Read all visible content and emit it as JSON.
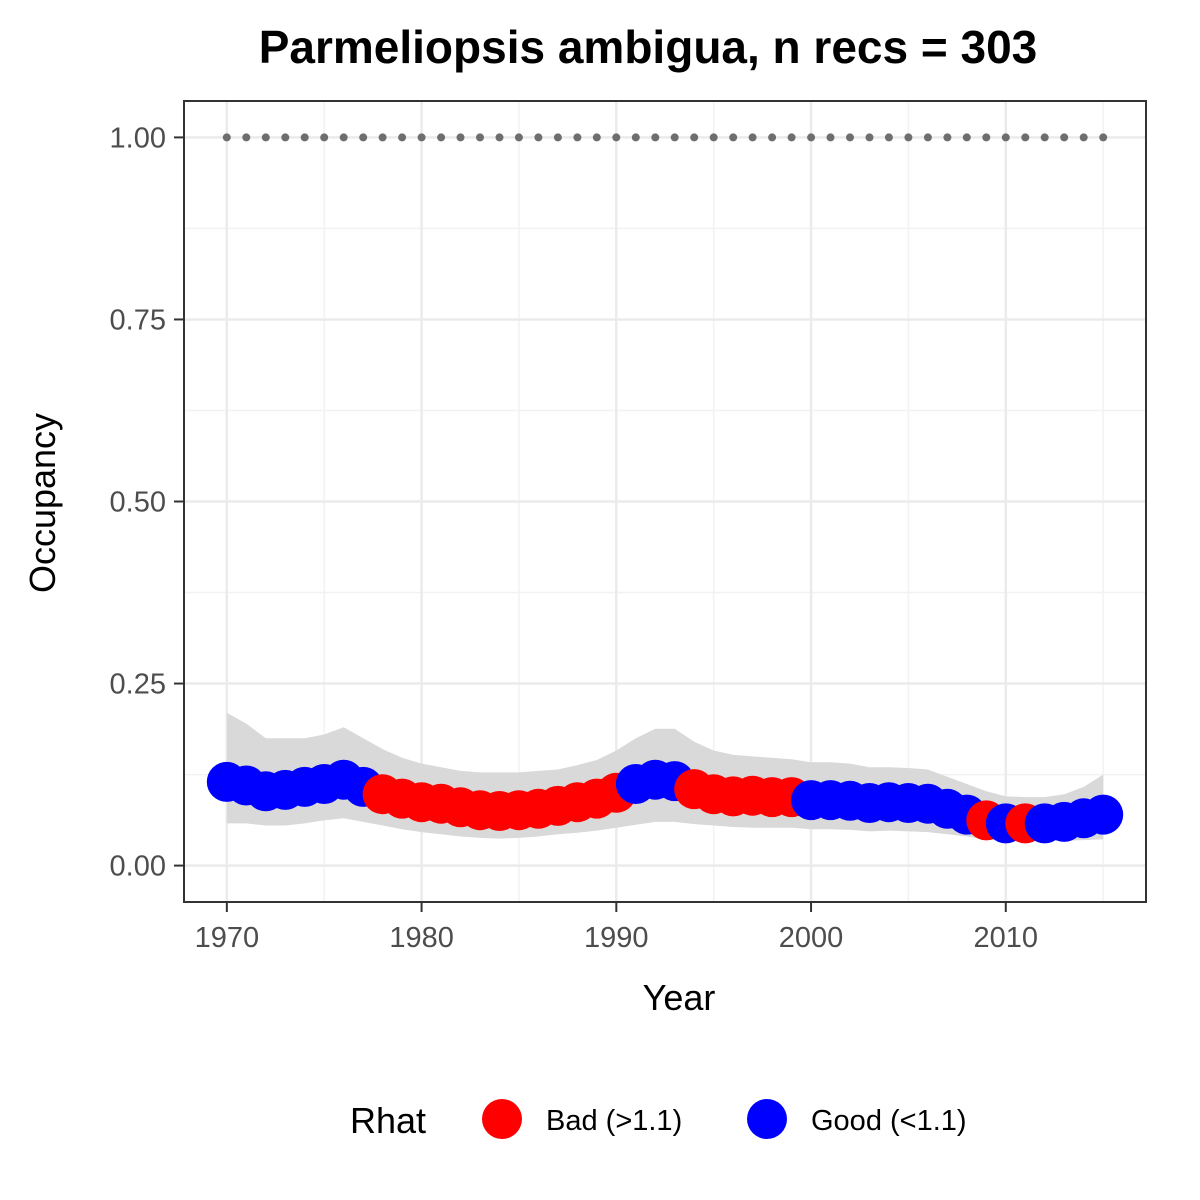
{
  "chart_data": {
    "type": "scatter",
    "title": "Parmeliopsis ambigua, n recs = 303",
    "xlabel": "Year",
    "ylabel": "Occupancy",
    "xlim": [
      1967.8,
      2017.2
    ],
    "ylim": [
      -0.05,
      1.05
    ],
    "x_ticks": [
      1970,
      1980,
      1990,
      2000,
      2010
    ],
    "x_tick_labels": [
      "1970",
      "1980",
      "1990",
      "2000",
      "2010"
    ],
    "y_ticks": [
      0,
      0.25,
      0.5,
      0.75,
      1.0
    ],
    "y_tick_labels": [
      "0.00",
      "0.25",
      "0.50",
      "0.75",
      "1.00"
    ],
    "grid": true,
    "legend": {
      "title": "Rhat",
      "position": "bottom",
      "entries": [
        {
          "label": "Bad (>1.1)",
          "color": "#ff0000"
        },
        {
          "label": "Good (<1.1)",
          "color": "#0000ff"
        }
      ]
    },
    "reference_line": {
      "y": 1.0,
      "style": "dotted",
      "color": "#6e6e6e"
    },
    "ribbon_color": "#d9d9d9",
    "years": [
      1970,
      1971,
      1972,
      1973,
      1974,
      1975,
      1976,
      1977,
      1978,
      1979,
      1980,
      1981,
      1982,
      1983,
      1984,
      1985,
      1986,
      1987,
      1988,
      1989,
      1990,
      1991,
      1992,
      1993,
      1994,
      1995,
      1996,
      1997,
      1998,
      1999,
      2000,
      2001,
      2002,
      2003,
      2004,
      2005,
      2006,
      2007,
      2008,
      2009,
      2010,
      2011,
      2012,
      2013,
      2014,
      2015
    ],
    "occupancy": [
      0.115,
      0.11,
      0.102,
      0.104,
      0.108,
      0.112,
      0.118,
      0.108,
      0.098,
      0.092,
      0.087,
      0.085,
      0.08,
      0.076,
      0.075,
      0.076,
      0.078,
      0.082,
      0.087,
      0.092,
      0.1,
      0.112,
      0.118,
      0.116,
      0.105,
      0.098,
      0.095,
      0.096,
      0.094,
      0.094,
      0.09,
      0.09,
      0.089,
      0.086,
      0.087,
      0.086,
      0.085,
      0.078,
      0.07,
      0.062,
      0.058,
      0.058,
      0.058,
      0.06,
      0.065,
      0.07
    ],
    "lower": [
      0.058,
      0.058,
      0.055,
      0.055,
      0.058,
      0.062,
      0.065,
      0.06,
      0.055,
      0.05,
      0.046,
      0.043,
      0.04,
      0.038,
      0.037,
      0.038,
      0.04,
      0.043,
      0.045,
      0.048,
      0.052,
      0.056,
      0.06,
      0.06,
      0.057,
      0.055,
      0.053,
      0.052,
      0.052,
      0.052,
      0.05,
      0.05,
      0.049,
      0.047,
      0.048,
      0.047,
      0.046,
      0.043,
      0.04,
      0.036,
      0.034,
      0.034,
      0.034,
      0.034,
      0.035,
      0.036
    ],
    "upper": [
      0.21,
      0.195,
      0.175,
      0.175,
      0.175,
      0.18,
      0.19,
      0.175,
      0.16,
      0.148,
      0.14,
      0.135,
      0.13,
      0.128,
      0.128,
      0.128,
      0.13,
      0.132,
      0.138,
      0.145,
      0.158,
      0.175,
      0.188,
      0.188,
      0.17,
      0.158,
      0.152,
      0.15,
      0.148,
      0.146,
      0.142,
      0.142,
      0.14,
      0.135,
      0.135,
      0.134,
      0.132,
      0.122,
      0.112,
      0.102,
      0.095,
      0.094,
      0.094,
      0.098,
      0.108,
      0.125
    ],
    "rhat": [
      "Good",
      "Good",
      "Good",
      "Good",
      "Good",
      "Good",
      "Good",
      "Good",
      "Bad",
      "Bad",
      "Bad",
      "Bad",
      "Bad",
      "Bad",
      "Bad",
      "Bad",
      "Bad",
      "Bad",
      "Bad",
      "Bad",
      "Bad",
      "Good",
      "Good",
      "Good",
      "Bad",
      "Bad",
      "Bad",
      "Bad",
      "Bad",
      "Bad",
      "Good",
      "Good",
      "Good",
      "Good",
      "Good",
      "Good",
      "Good",
      "Good",
      "Good",
      "Bad",
      "Good",
      "Bad",
      "Good",
      "Good",
      "Good",
      "Good"
    ]
  }
}
